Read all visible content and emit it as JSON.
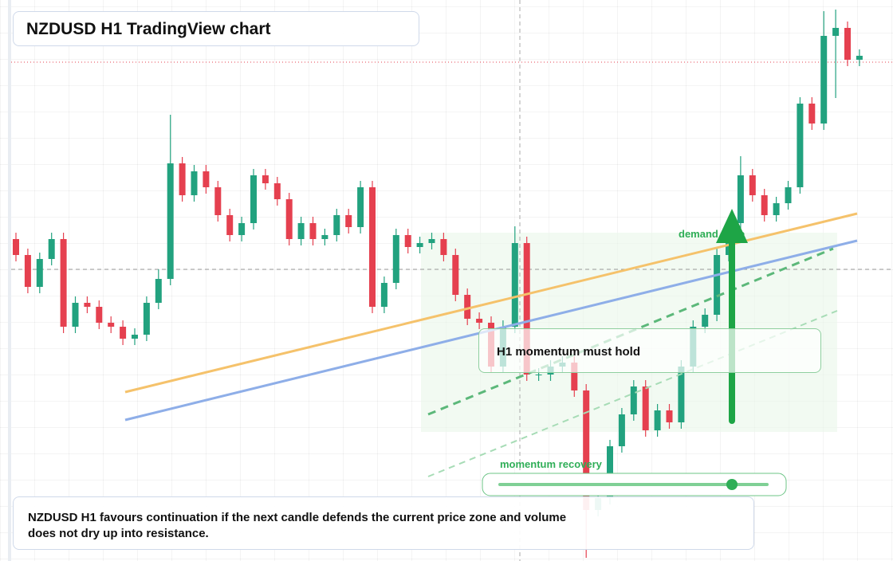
{
  "header": {
    "title": "NZDUSD H1 TradingView chart"
  },
  "chart_data": {
    "type": "candlestick",
    "open": [
      404,
      384,
      344,
      379,
      404,
      294,
      324,
      319,
      299,
      294,
      279,
      284,
      324,
      354,
      499,
      459,
      489,
      469,
      434,
      409,
      424,
      484,
      474,
      454,
      404,
      424,
      404,
      409,
      434,
      419,
      469,
      319,
      349,
      409,
      394,
      399,
      404,
      384,
      334,
      304,
      299,
      244,
      294,
      399,
      234,
      234,
      244,
      249,
      214,
      64,
      79,
      144,
      184,
      219,
      164,
      189,
      174,
      244,
      294,
      309,
      384,
      424,
      484,
      459,
      434,
      449,
      469,
      574,
      549,
      659,
      669,
      629
    ],
    "high": [
      412,
      392,
      387,
      412,
      412,
      332,
      332,
      327,
      307,
      302,
      292,
      332,
      366,
      560,
      507,
      497,
      497,
      477,
      442,
      432,
      492,
      492,
      482,
      462,
      432,
      432,
      417,
      442,
      442,
      477,
      477,
      357,
      417,
      417,
      407,
      412,
      412,
      392,
      342,
      312,
      307,
      302,
      420,
      407,
      242,
      252,
      257,
      257,
      222,
      87,
      152,
      192,
      227,
      227,
      197,
      197,
      252,
      302,
      317,
      392,
      432,
      508,
      492,
      467,
      457,
      477,
      582,
      582,
      690,
      692,
      677,
      642
    ],
    "low": [
      376,
      336,
      336,
      371,
      286,
      286,
      311,
      291,
      286,
      271,
      271,
      276,
      316,
      346,
      451,
      451,
      461,
      426,
      401,
      401,
      416,
      466,
      446,
      396,
      396,
      396,
      396,
      401,
      411,
      411,
      311,
      311,
      341,
      386,
      386,
      391,
      376,
      326,
      296,
      291,
      236,
      236,
      286,
      226,
      226,
      226,
      236,
      206,
      4,
      56,
      71,
      136,
      176,
      156,
      156,
      166,
      166,
      236,
      286,
      301,
      376,
      416,
      451,
      426,
      426,
      441,
      461,
      541,
      541,
      581,
      621,
      621
    ],
    "close": [
      384,
      344,
      379,
      404,
      294,
      324,
      319,
      299,
      294,
      279,
      284,
      324,
      354,
      499,
      459,
      489,
      469,
      434,
      409,
      424,
      484,
      474,
      454,
      404,
      424,
      404,
      409,
      434,
      419,
      469,
      319,
      349,
      409,
      394,
      399,
      404,
      384,
      334,
      304,
      299,
      244,
      294,
      399,
      234,
      234,
      244,
      249,
      214,
      64,
      79,
      144,
      184,
      219,
      164,
      189,
      174,
      244,
      294,
      309,
      384,
      424,
      484,
      459,
      434,
      449,
      469,
      574,
      549,
      659,
      669,
      629,
      634
    ],
    "ylim": [
      0,
      704
    ],
    "up_color": "#22a27f",
    "down_color": "#e5404f",
    "annotations": {
      "zone": "demand zone",
      "callout": "H1 momentum must hold",
      "recovery": "momentum recovery"
    },
    "note": "NZDUSD H1 favours continuation if the next candle defends the current price zone and volume does not dry up into resistance."
  }
}
